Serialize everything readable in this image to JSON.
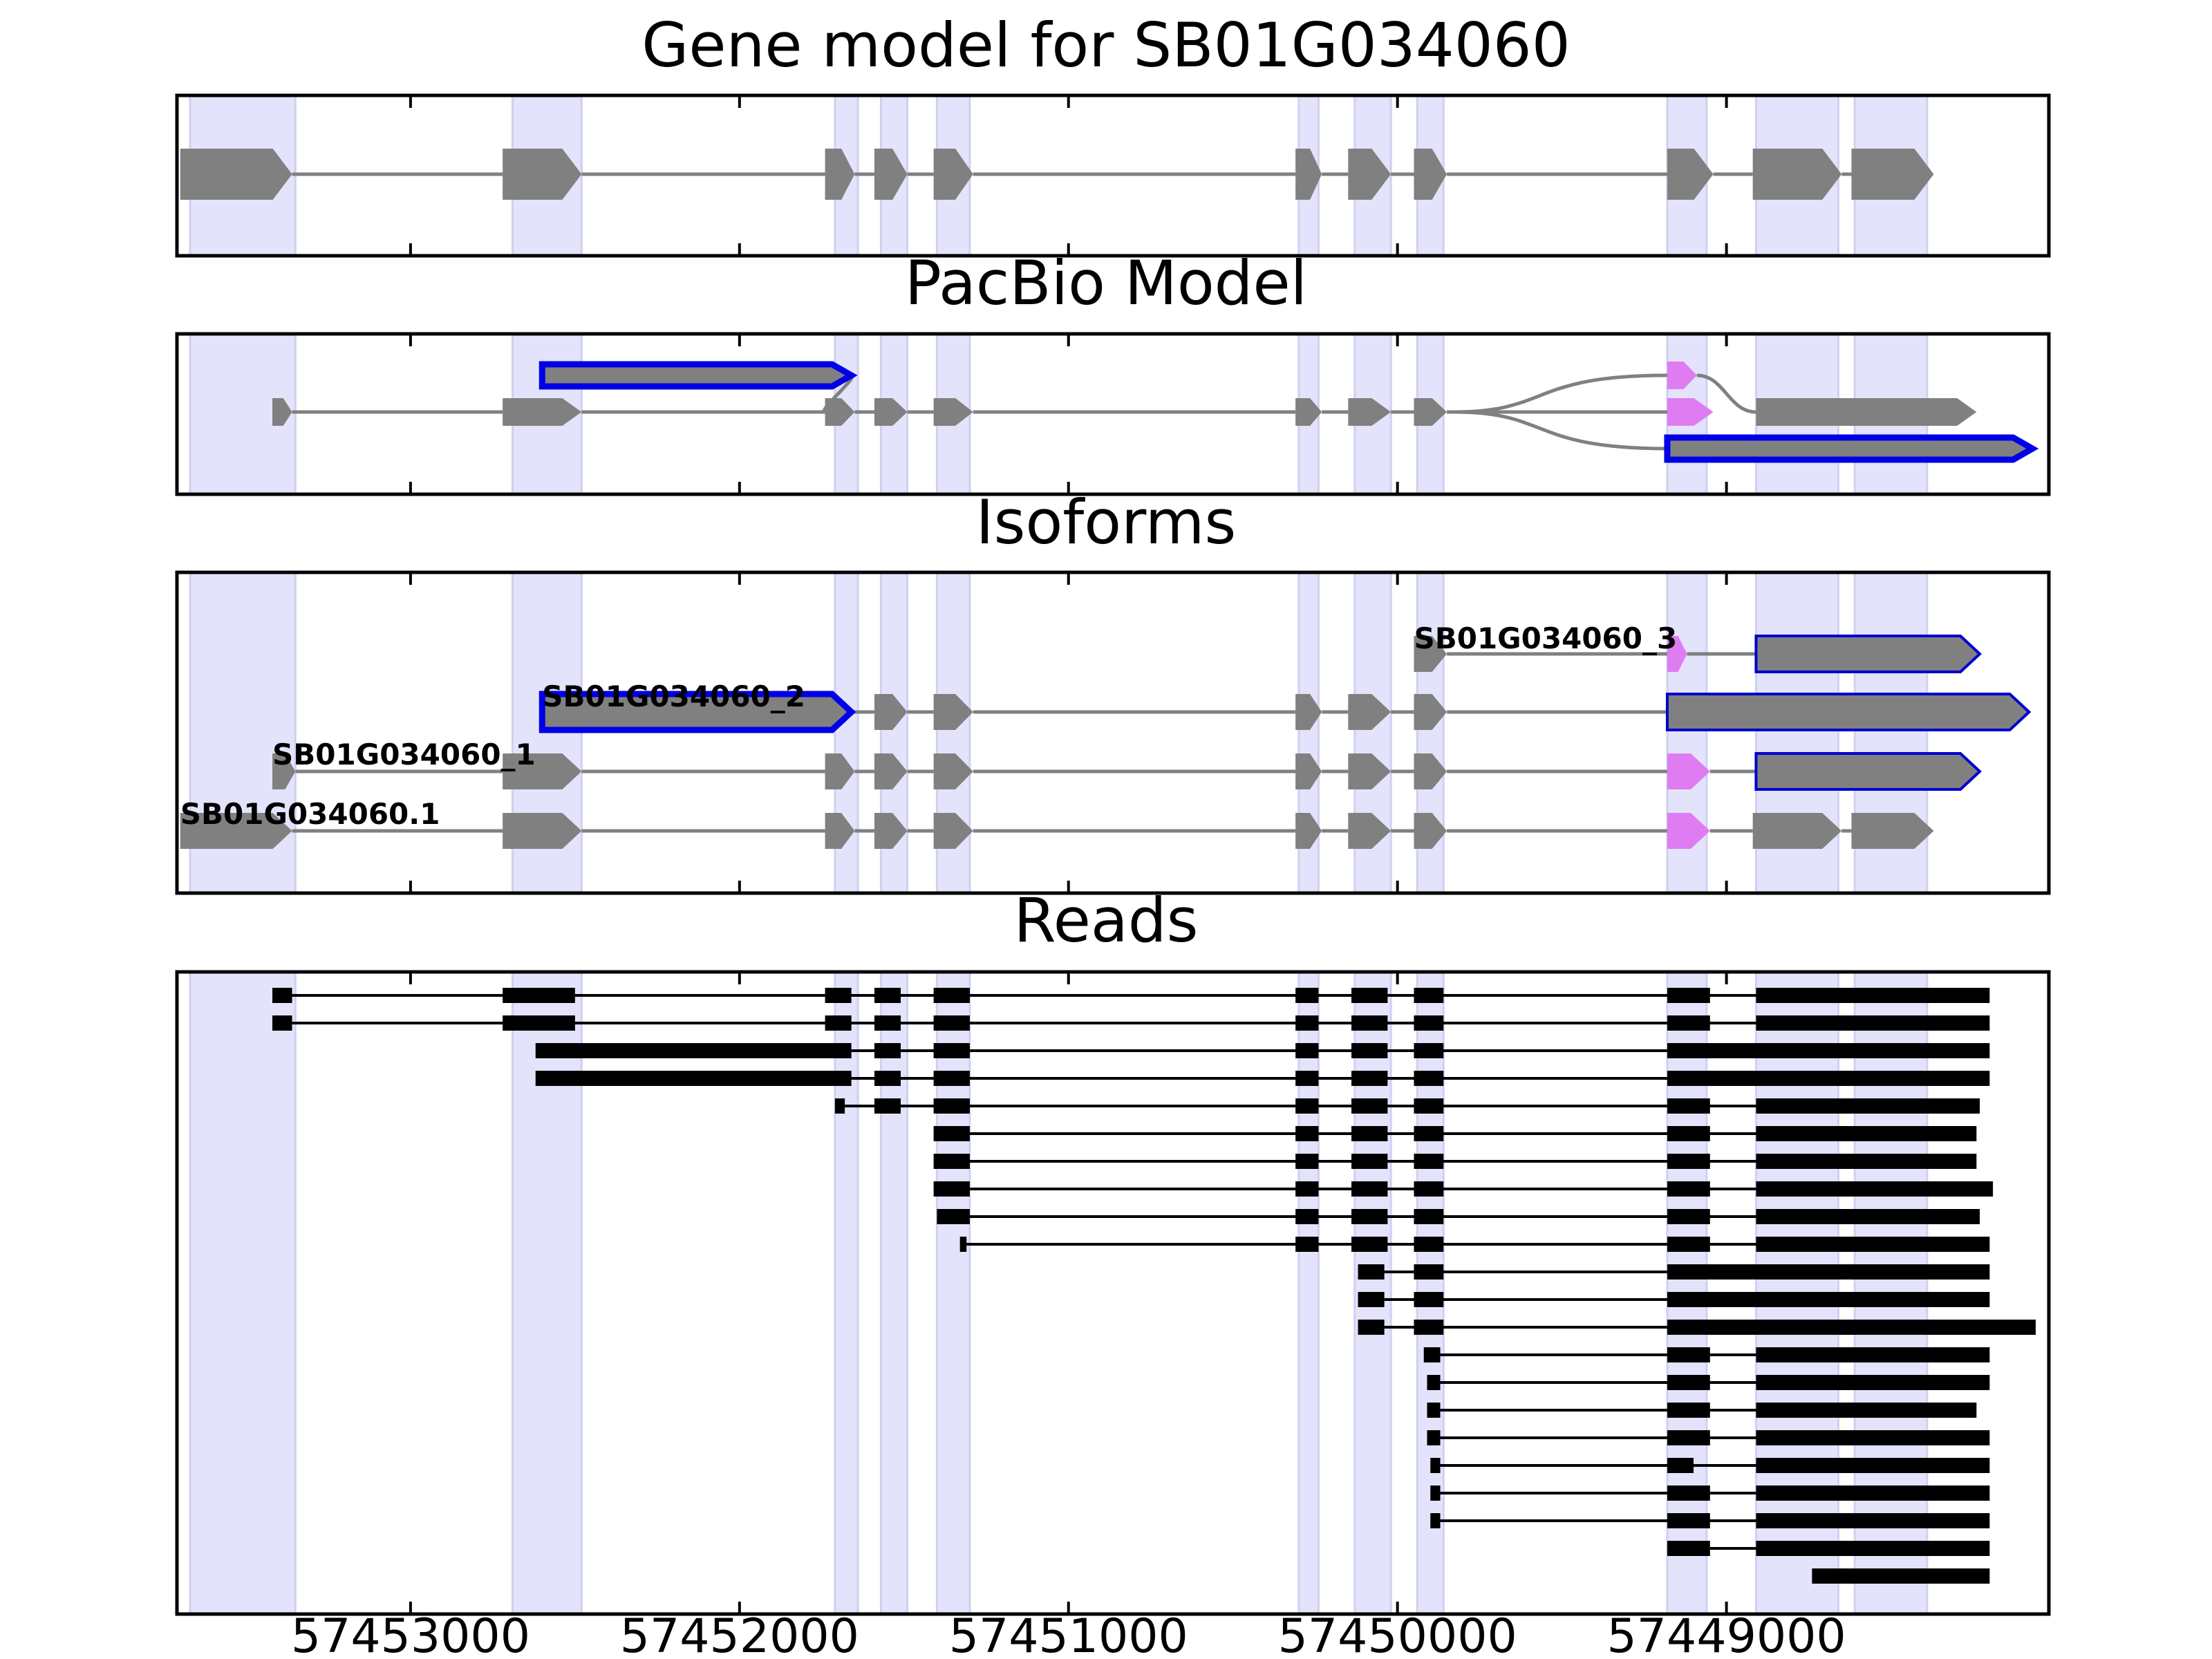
{
  "chart_data": {
    "type": "gene-track",
    "x_axis": {
      "range": [
        57453710,
        57448020
      ],
      "inverted": true,
      "ticks": [
        57453000,
        57452000,
        57451000,
        57450000,
        57449000
      ],
      "tick_labels": [
        "57453000",
        "57452000",
        "57451000",
        "57450000",
        "57449000"
      ]
    },
    "exon_bands": [
      [
        57453670,
        57453350
      ],
      [
        57452690,
        57452480
      ],
      [
        57451710,
        57451640
      ],
      [
        57451570,
        57451490
      ],
      [
        57451400,
        57451300
      ],
      [
        57450300,
        57450240
      ],
      [
        57450130,
        57450020
      ],
      [
        57449940,
        57449860
      ],
      [
        57449180,
        57449060
      ],
      [
        57448910,
        57448660
      ],
      [
        57448610,
        57448390
      ]
    ],
    "panels": [
      {
        "title": "Gene model for SB01G034060",
        "tracks": [
          {
            "label": "",
            "exons": [
              {
                "s": 57453700,
                "e": 57453360,
                "style": "gray"
              },
              {
                "s": 57452720,
                "e": 57452480,
                "style": "gray"
              },
              {
                "s": 57451740,
                "e": 57451650,
                "style": "gray"
              },
              {
                "s": 57451590,
                "e": 57451490,
                "style": "gray"
              },
              {
                "s": 57451410,
                "e": 57451290,
                "style": "gray"
              },
              {
                "s": 57450310,
                "e": 57450230,
                "style": "gray"
              },
              {
                "s": 57450150,
                "e": 57450020,
                "style": "gray"
              },
              {
                "s": 57449950,
                "e": 57449850,
                "style": "gray"
              },
              {
                "s": 57449180,
                "e": 57449040,
                "style": "gray"
              },
              {
                "s": 57448920,
                "e": 57448650,
                "style": "gray"
              },
              {
                "s": 57448620,
                "e": 57448370,
                "style": "gray"
              }
            ]
          }
        ]
      },
      {
        "title": "PacBio Model",
        "tracks": [
          {
            "label": "",
            "exons": [
              {
                "s": 57452600,
                "e": 57451660,
                "style": "blue"
              },
              {
                "s": 57451590,
                "e": 57451490,
                "style": "gray"
              },
              {
                "s": 57451410,
                "e": 57451290,
                "style": "gray"
              },
              {
                "s": 57450310,
                "e": 57450230,
                "style": "gray"
              },
              {
                "s": 57450150,
                "e": 57450020,
                "style": "gray"
              },
              {
                "s": 57449950,
                "e": 57449850,
                "style": "gray"
              },
              {
                "s": 57449180,
                "e": 57449090,
                "style": "pink"
              },
              {
                "s": 57448910,
                "e": 57448240,
                "style": "gray"
              }
            ]
          },
          {
            "label": "",
            "exons": [
              {
                "s": 57453420,
                "e": 57453360,
                "style": "gray"
              },
              {
                "s": 57452720,
                "e": 57452480,
                "style": "gray"
              },
              {
                "s": 57451740,
                "e": 57451650,
                "style": "gray"
              },
              {
                "s": 57451590,
                "e": 57451490,
                "style": "gray"
              },
              {
                "s": 57451410,
                "e": 57451290,
                "style": "gray"
              },
              {
                "s": 57450310,
                "e": 57450230,
                "style": "gray"
              },
              {
                "s": 57450150,
                "e": 57450020,
                "style": "gray"
              },
              {
                "s": 57449950,
                "e": 57449850,
                "style": "gray"
              },
              {
                "s": 57449180,
                "e": 57449040,
                "style": "pink"
              },
              {
                "s": 57448910,
                "e": 57448240,
                "style": "gray"
              }
            ]
          },
          {
            "label": "",
            "exons": [
              {
                "s": 57451740,
                "e": 57451650,
                "style": "gray"
              },
              {
                "s": 57451590,
                "e": 57451490,
                "style": "gray"
              },
              {
                "s": 57451410,
                "e": 57451290,
                "style": "gray"
              },
              {
                "s": 57450310,
                "e": 57450230,
                "style": "gray"
              },
              {
                "s": 57450150,
                "e": 57450020,
                "style": "gray"
              },
              {
                "s": 57449950,
                "e": 57449850,
                "style": "gray"
              },
              {
                "s": 57449180,
                "e": 57448070,
                "style": "blue"
              }
            ]
          }
        ]
      },
      {
        "title": "Isoforms",
        "tracks": [
          {
            "label": "SB01G034060_3",
            "exons": [
              {
                "s": 57449950,
                "e": 57449850,
                "style": "gray"
              },
              {
                "s": 57449180,
                "e": 57449120,
                "style": "pink"
              },
              {
                "s": 57448910,
                "e": 57448230,
                "style": "outline"
              }
            ]
          },
          {
            "label": "SB01G034060_2",
            "exons": [
              {
                "s": 57452600,
                "e": 57451660,
                "style": "blue"
              },
              {
                "s": 57451590,
                "e": 57451490,
                "style": "gray"
              },
              {
                "s": 57451410,
                "e": 57451290,
                "style": "gray"
              },
              {
                "s": 57450310,
                "e": 57450230,
                "style": "gray"
              },
              {
                "s": 57450150,
                "e": 57450020,
                "style": "gray"
              },
              {
                "s": 57449950,
                "e": 57449850,
                "style": "gray"
              },
              {
                "s": 57449180,
                "e": 57448080,
                "style": "outline"
              }
            ]
          },
          {
            "label": "SB01G034060_1",
            "exons": [
              {
                "s": 57453420,
                "e": 57453350,
                "style": "gray"
              },
              {
                "s": 57452720,
                "e": 57452480,
                "style": "gray"
              },
              {
                "s": 57451740,
                "e": 57451650,
                "style": "gray"
              },
              {
                "s": 57451590,
                "e": 57451490,
                "style": "gray"
              },
              {
                "s": 57451410,
                "e": 57451290,
                "style": "gray"
              },
              {
                "s": 57450310,
                "e": 57450230,
                "style": "gray"
              },
              {
                "s": 57450150,
                "e": 57450020,
                "style": "gray"
              },
              {
                "s": 57449950,
                "e": 57449850,
                "style": "gray"
              },
              {
                "s": 57449180,
                "e": 57449050,
                "style": "pink"
              },
              {
                "s": 57448910,
                "e": 57448230,
                "style": "outline"
              }
            ]
          },
          {
            "label": "SB01G034060.1",
            "exons": [
              {
                "s": 57453700,
                "e": 57453360,
                "style": "gray"
              },
              {
                "s": 57452720,
                "e": 57452480,
                "style": "gray"
              },
              {
                "s": 57451740,
                "e": 57451650,
                "style": "gray"
              },
              {
                "s": 57451590,
                "e": 57451490,
                "style": "gray"
              },
              {
                "s": 57451410,
                "e": 57451290,
                "style": "gray"
              },
              {
                "s": 57450310,
                "e": 57450230,
                "style": "gray"
              },
              {
                "s": 57450150,
                "e": 57450020,
                "style": "gray"
              },
              {
                "s": 57449950,
                "e": 57449850,
                "style": "gray"
              },
              {
                "s": 57449180,
                "e": 57449050,
                "style": "pink"
              },
              {
                "s": 57448920,
                "e": 57448650,
                "style": "gray"
              },
              {
                "s": 57448620,
                "e": 57448370,
                "style": "gray"
              }
            ]
          }
        ]
      },
      {
        "title": "Reads",
        "reads": [
          [
            [
              57453420,
              57453360
            ],
            [
              57452720,
              57452500
            ],
            [
              57451740,
              57451660
            ],
            [
              57451590,
              57451510
            ],
            [
              57451410,
              57451300
            ],
            [
              57450310,
              57450240
            ],
            [
              57450140,
              57450030
            ],
            [
              57449950,
              57449860
            ],
            [
              57449180,
              57449050
            ],
            [
              57448910,
              57448200
            ]
          ],
          [
            [
              57453420,
              57453360
            ],
            [
              57452720,
              57452500
            ],
            [
              57451740,
              57451660
            ],
            [
              57451590,
              57451510
            ],
            [
              57451410,
              57451300
            ],
            [
              57450310,
              57450240
            ],
            [
              57450140,
              57450030
            ],
            [
              57449950,
              57449860
            ],
            [
              57449180,
              57449050
            ],
            [
              57448910,
              57448200
            ]
          ],
          [
            [
              57452620,
              57451660
            ],
            [
              57451590,
              57451510
            ],
            [
              57451410,
              57451300
            ],
            [
              57450310,
              57450240
            ],
            [
              57450140,
              57450030
            ],
            [
              57449950,
              57449860
            ],
            [
              57449180,
              57448200
            ]
          ],
          [
            [
              57452620,
              57451660
            ],
            [
              57451590,
              57451510
            ],
            [
              57451410,
              57451300
            ],
            [
              57450310,
              57450240
            ],
            [
              57450140,
              57450030
            ],
            [
              57449950,
              57449860
            ],
            [
              57449180,
              57448200
            ]
          ],
          [
            [
              57451710,
              57451680
            ],
            [
              57451590,
              57451510
            ],
            [
              57451410,
              57451300
            ],
            [
              57450310,
              57450240
            ],
            [
              57450140,
              57450030
            ],
            [
              57449950,
              57449860
            ],
            [
              57449180,
              57449050
            ],
            [
              57448910,
              57448230
            ]
          ],
          [
            [
              57451410,
              57451300
            ],
            [
              57450310,
              57450240
            ],
            [
              57450140,
              57450030
            ],
            [
              57449950,
              57449860
            ],
            [
              57449180,
              57449050
            ],
            [
              57448910,
              57448240
            ]
          ],
          [
            [
              57451410,
              57451300
            ],
            [
              57450310,
              57450240
            ],
            [
              57450140,
              57450030
            ],
            [
              57449950,
              57449860
            ],
            [
              57449180,
              57449050
            ],
            [
              57448910,
              57448240
            ]
          ],
          [
            [
              57451410,
              57451300
            ],
            [
              57450310,
              57450240
            ],
            [
              57450140,
              57450030
            ],
            [
              57449950,
              57449860
            ],
            [
              57449180,
              57449050
            ],
            [
              57448910,
              57448190
            ]
          ],
          [
            [
              57451400,
              57451300
            ],
            [
              57450310,
              57450240
            ],
            [
              57450140,
              57450030
            ],
            [
              57449950,
              57449860
            ],
            [
              57449180,
              57449050
            ],
            [
              57448910,
              57448230
            ]
          ],
          [
            [
              57451330,
              57451310
            ],
            [
              57450310,
              57450240
            ],
            [
              57450140,
              57450030
            ],
            [
              57449950,
              57449860
            ],
            [
              57449180,
              57449050
            ],
            [
              57448910,
              57448200
            ]
          ],
          [
            [
              57450120,
              57450040
            ],
            [
              57449950,
              57449860
            ],
            [
              57449180,
              57448200
            ]
          ],
          [
            [
              57450120,
              57450040
            ],
            [
              57449950,
              57449860
            ],
            [
              57449180,
              57448200
            ]
          ],
          [
            [
              57450120,
              57450040
            ],
            [
              57449950,
              57449860
            ],
            [
              57449180,
              57448060
            ]
          ],
          [
            [
              57449920,
              57449870
            ],
            [
              57449180,
              57449050
            ],
            [
              57448910,
              57448200
            ]
          ],
          [
            [
              57449910,
              57449870
            ],
            [
              57449180,
              57449050
            ],
            [
              57448910,
              57448200
            ]
          ],
          [
            [
              57449910,
              57449870
            ],
            [
              57449180,
              57449050
            ],
            [
              57448910,
              57448240
            ]
          ],
          [
            [
              57449910,
              57449870
            ],
            [
              57449180,
              57449050
            ],
            [
              57448910,
              57448200
            ]
          ],
          [
            [
              57449900,
              57449870
            ],
            [
              57449180,
              57449100
            ],
            [
              57448910,
              57448200
            ]
          ],
          [
            [
              57449900,
              57449870
            ],
            [
              57449180,
              57449050
            ],
            [
              57448910,
              57448200
            ]
          ],
          [
            [
              57449900,
              57449870
            ],
            [
              57449180,
              57449050
            ],
            [
              57448910,
              57448200
            ]
          ],
          [
            [
              57449180,
              57449050
            ],
            [
              57448910,
              57448200
            ]
          ],
          [
            [
              57448740,
              57448200
            ]
          ]
        ]
      }
    ]
  }
}
